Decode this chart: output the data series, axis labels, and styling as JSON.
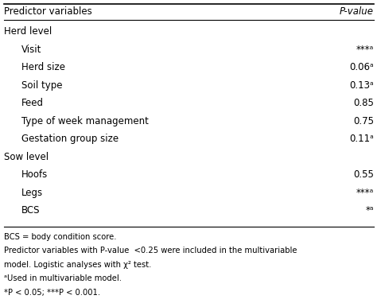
{
  "col1_header": "Predictor variables",
  "col2_header": "P-value",
  "rows": [
    {
      "label": "Herd level",
      "value": "",
      "indent": false,
      "bold": false,
      "section": true
    },
    {
      "label": "Visit",
      "value": "***ᵃ",
      "indent": true,
      "bold": false,
      "section": false
    },
    {
      "label": "Herd size",
      "value": "0.06ᵃ",
      "indent": true,
      "bold": false,
      "section": false
    },
    {
      "label": "Soil type",
      "value": "0.13ᵃ",
      "indent": true,
      "bold": false,
      "section": false
    },
    {
      "label": "Feed",
      "value": "0.85",
      "indent": true,
      "bold": false,
      "section": false
    },
    {
      "label": "Type of week management",
      "value": "0.75",
      "indent": true,
      "bold": false,
      "section": false
    },
    {
      "label": "Gestation group size",
      "value": "0.11ᵃ",
      "indent": true,
      "bold": false,
      "section": false
    },
    {
      "label": "Sow level",
      "value": "",
      "indent": false,
      "bold": false,
      "section": true
    },
    {
      "label": "Hoofs",
      "value": "0.55",
      "indent": true,
      "bold": false,
      "section": false
    },
    {
      "label": "Legs",
      "value": "***ᵃ",
      "indent": true,
      "bold": false,
      "section": false
    },
    {
      "label": "BCS",
      "value": "*ᵃ",
      "indent": true,
      "bold": false,
      "section": false
    }
  ],
  "footnote_lines": [
    "BCS = body condition score.",
    "Predictor variables with P-value  <0.25 were included in the multivariable",
    "model. Logistic analyses with χ² test.",
    "ᵃUsed in multivariable model.",
    "*P < 0.05; ***P < 0.001."
  ],
  "bg_color": "#ffffff",
  "text_color": "#000000",
  "header_fontsize": 8.5,
  "body_fontsize": 8.5,
  "footnote_fontsize": 7.2,
  "fig_width": 4.74,
  "fig_height": 3.86,
  "dpi": 100
}
